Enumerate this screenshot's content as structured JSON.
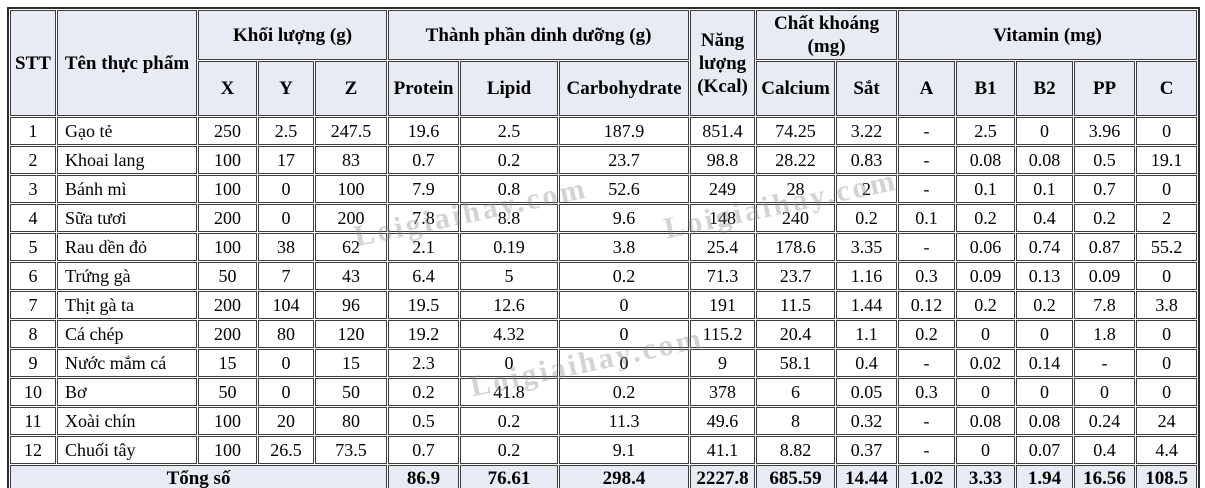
{
  "table": {
    "headers": {
      "stt": "STT",
      "food_name": "Tên thực phẩm",
      "mass_group": "Khối lượng (g)",
      "mass_cols": [
        "X",
        "Y",
        "Z"
      ],
      "nutrition_group": "Thành phần dinh dưỡng (g)",
      "nutrition_cols": [
        "Protein",
        "Lipid",
        "Carbohydrate"
      ],
      "energy": "Năng lượng (Kcal)",
      "mineral_group": "Chất khoáng (mg)",
      "mineral_cols": [
        "Calcium",
        "Sắt"
      ],
      "vitamin_group": "Vitamin (mg)",
      "vitamin_cols": [
        "A",
        "B1",
        "B2",
        "PP",
        "C"
      ]
    },
    "rows": [
      {
        "stt": "1",
        "name": "Gạo tẻ",
        "values": [
          "250",
          "2.5",
          "247.5",
          "19.6",
          "2.5",
          "187.9",
          "851.4",
          "74.25",
          "3.22",
          "-",
          "2.5",
          "0",
          "3.96",
          "0"
        ]
      },
      {
        "stt": "2",
        "name": "Khoai lang",
        "values": [
          "100",
          "17",
          "83",
          "0.7",
          "0.2",
          "23.7",
          "98.8",
          "28.22",
          "0.83",
          "-",
          "0.08",
          "0.08",
          "0.5",
          "19.1"
        ]
      },
      {
        "stt": "3",
        "name": "Bánh mì",
        "values": [
          "100",
          "0",
          "100",
          "7.9",
          "0.8",
          "52.6",
          "249",
          "28",
          "2",
          "-",
          "0.1",
          "0.1",
          "0.7",
          "0"
        ]
      },
      {
        "stt": "4",
        "name": "Sữa tươi",
        "values": [
          "200",
          "0",
          "200",
          "7.8",
          "8.8",
          "9.6",
          "148",
          "240",
          "0.2",
          "0.1",
          "0.2",
          "0.4",
          "0.2",
          "2"
        ]
      },
      {
        "stt": "5",
        "name": "Rau dền đỏ",
        "values": [
          "100",
          "38",
          "62",
          "2.1",
          "0.19",
          "3.8",
          "25.4",
          "178.6",
          "3.35",
          "-",
          "0.06",
          "0.74",
          "0.87",
          "55.2"
        ]
      },
      {
        "stt": "6",
        "name": "Trứng gà",
        "values": [
          "50",
          "7",
          "43",
          "6.4",
          "5",
          "0.2",
          "71.3",
          "23.7",
          "1.16",
          "0.3",
          "0.09",
          "0.13",
          "0.09",
          "0"
        ]
      },
      {
        "stt": "7",
        "name": "Thịt gà ta",
        "values": [
          "200",
          "104",
          "96",
          "19.5",
          "12.6",
          "0",
          "191",
          "11.5",
          "1.44",
          "0.12",
          "0.2",
          "0.2",
          "7.8",
          "3.8"
        ]
      },
      {
        "stt": "8",
        "name": "Cá chép",
        "values": [
          "200",
          "80",
          "120",
          "19.2",
          "4.32",
          "0",
          "115.2",
          "20.4",
          "1.1",
          "0.2",
          "0",
          "0",
          "1.8",
          "0"
        ]
      },
      {
        "stt": "9",
        "name": "Nước mắm cá",
        "values": [
          "15",
          "0",
          "15",
          "2.3",
          "0",
          "0",
          "9",
          "58.1",
          "0.4",
          "-",
          "0.02",
          "0.14",
          "-",
          "0"
        ]
      },
      {
        "stt": "10",
        "name": "Bơ",
        "values": [
          "50",
          "0",
          "50",
          "0.2",
          "41.8",
          "0.2",
          "378",
          "6",
          "0.05",
          "0.3",
          "0",
          "0",
          "0",
          "0"
        ]
      },
      {
        "stt": "11",
        "name": "Xoài chín",
        "values": [
          "100",
          "20",
          "80",
          "0.5",
          "0.2",
          "11.3",
          "49.6",
          "8",
          "0.32",
          "-",
          "0.08",
          "0.08",
          "0.24",
          "24"
        ]
      },
      {
        "stt": "12",
        "name": "Chuối tây",
        "values": [
          "100",
          "26.5",
          "73.5",
          "0.7",
          "0.2",
          "9.1",
          "41.1",
          "8.82",
          "0.37",
          "-",
          "0",
          "0.07",
          "0.4",
          "4.4"
        ]
      }
    ],
    "total": {
      "label": "Tổng số",
      "values": [
        "86.9",
        "76.61",
        "298.4",
        "2227.8",
        "685.59",
        "14.44",
        "1.02",
        "3.33",
        "1.94",
        "16.56",
        "108.5"
      ]
    }
  },
  "watermark": {
    "text": "Loigiaihay.com"
  },
  "colors": {
    "header_bg": "#e9ebf4",
    "total_bg": "#e9ebf4",
    "border": "#3d3d3d",
    "text": "#000000"
  }
}
